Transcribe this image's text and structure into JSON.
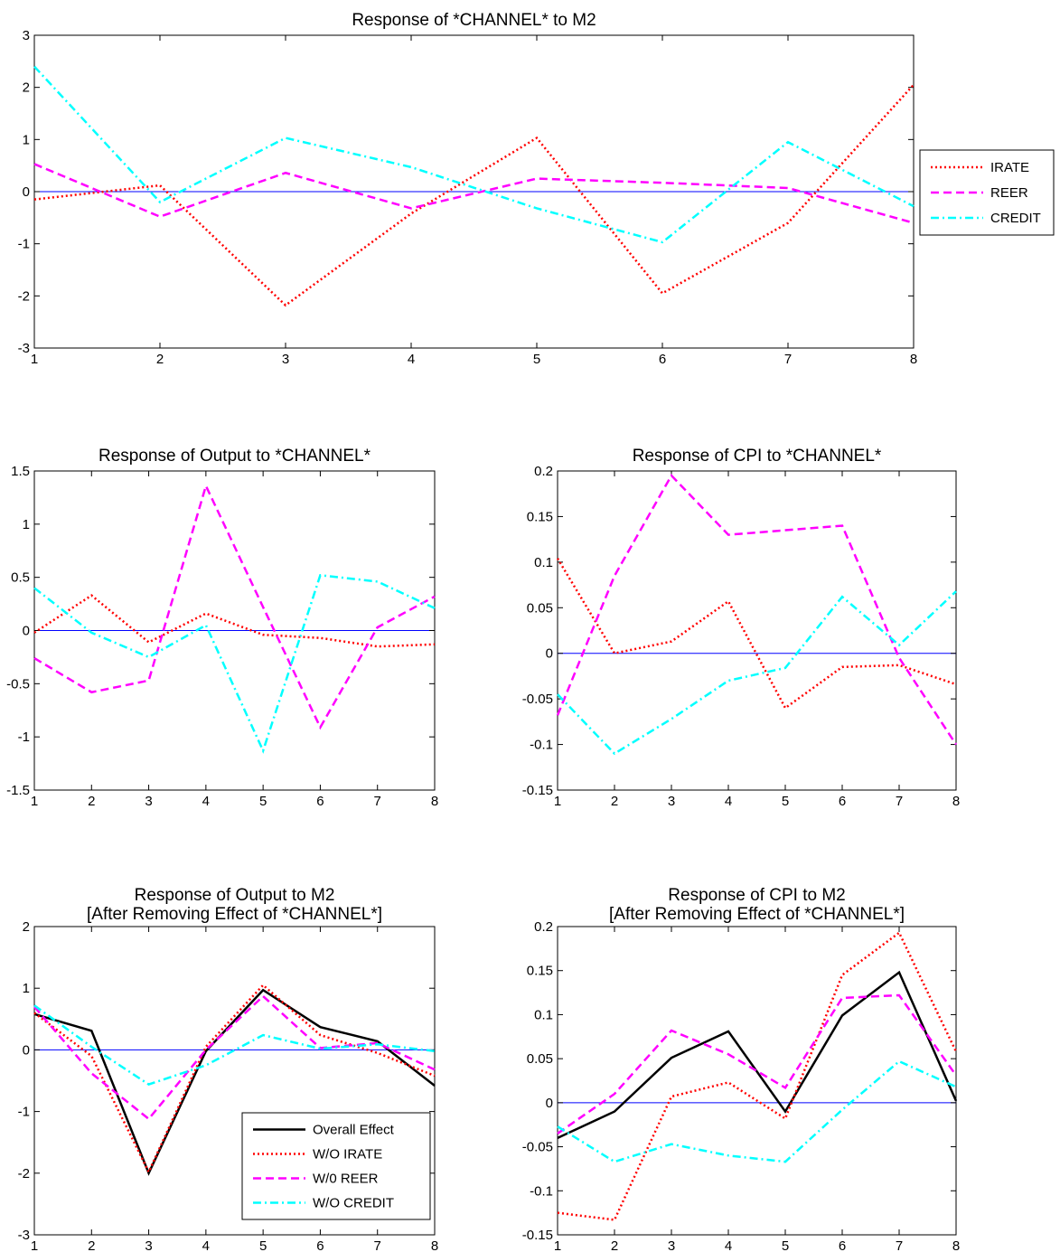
{
  "chart_data": [
    {
      "type": "line",
      "title": "Response of *CHANNEL* to M2",
      "x": [
        1,
        2,
        3,
        4,
        5,
        6,
        7,
        8
      ],
      "xlim": [
        1,
        8
      ],
      "ylim": [
        -3,
        3
      ],
      "xticks": [
        "1",
        "2",
        "3",
        "4",
        "5",
        "6",
        "7",
        "8"
      ],
      "yticks": [
        "-3",
        "-2",
        "-1",
        "0",
        "1",
        "2",
        "3"
      ],
      "legend_position": "outside-right",
      "series": [
        {
          "name": "IRATE",
          "color": "#ff0000",
          "dash": "dotted",
          "values": [
            -0.15,
            0.12,
            -2.18,
            -0.42,
            1.03,
            -1.95,
            -0.6,
            2.05
          ]
        },
        {
          "name": "REER",
          "color": "#ff00ff",
          "dash": "dashed",
          "values": [
            0.53,
            -0.48,
            0.36,
            -0.32,
            0.25,
            0.17,
            0.07,
            -0.6
          ]
        },
        {
          "name": "CREDIT",
          "color": "#00ffff",
          "dash": "dashdot",
          "values": [
            2.4,
            -0.2,
            1.03,
            0.47,
            -0.32,
            -0.97,
            0.95,
            -0.28
          ]
        }
      ]
    },
    {
      "type": "line",
      "title": "Response of Output to *CHANNEL*",
      "x": [
        1,
        2,
        3,
        4,
        5,
        6,
        7,
        8
      ],
      "xlim": [
        1,
        8
      ],
      "ylim": [
        -1.5,
        1.5
      ],
      "xticks": [
        "1",
        "2",
        "3",
        "4",
        "5",
        "6",
        "7",
        "8"
      ],
      "yticks": [
        "-1.5",
        "-1",
        "-0.5",
        "0",
        "0.5",
        "1",
        "1.5"
      ],
      "series": [
        {
          "color": "#ff0000",
          "dash": "dotted",
          "values": [
            -0.02,
            0.33,
            -0.11,
            0.16,
            -0.04,
            -0.07,
            -0.15,
            -0.13
          ]
        },
        {
          "color": "#ff00ff",
          "dash": "dashed",
          "values": [
            -0.26,
            -0.58,
            -0.47,
            1.36,
            0.22,
            -0.91,
            0.03,
            0.32
          ]
        },
        {
          "color": "#00ffff",
          "dash": "dashdot",
          "values": [
            0.4,
            -0.02,
            -0.25,
            0.05,
            -1.13,
            0.52,
            0.46,
            0.21
          ]
        }
      ]
    },
    {
      "type": "line",
      "title": "Response of CPI to *CHANNEL*",
      "x": [
        1,
        2,
        3,
        4,
        5,
        6,
        7,
        8
      ],
      "xlim": [
        1,
        8
      ],
      "ylim": [
        -0.15,
        0.2
      ],
      "xticks": [
        "1",
        "2",
        "3",
        "4",
        "5",
        "6",
        "7",
        "8"
      ],
      "yticks": [
        "-0.15",
        "-0.1",
        "-0.05",
        "0",
        "0.05",
        "0.1",
        "0.15",
        "0.2"
      ],
      "series": [
        {
          "color": "#ff0000",
          "dash": "dotted",
          "values": [
            0.104,
            0.0,
            0.013,
            0.057,
            -0.06,
            -0.015,
            -0.013,
            -0.034
          ]
        },
        {
          "color": "#ff00ff",
          "dash": "dashed",
          "values": [
            -0.068,
            0.085,
            0.195,
            0.13,
            0.135,
            0.14,
            -0.005,
            -0.1
          ]
        },
        {
          "color": "#00ffff",
          "dash": "dashdot",
          "values": [
            -0.045,
            -0.11,
            -0.072,
            -0.03,
            -0.016,
            0.062,
            0.009,
            0.068
          ]
        }
      ]
    },
    {
      "type": "line",
      "title": "Response of Output to M2",
      "subtitle": "[After Removing Effect of *CHANNEL*]",
      "x": [
        1,
        2,
        3,
        4,
        5,
        6,
        7,
        8
      ],
      "xlim": [
        1,
        8
      ],
      "ylim": [
        -3,
        2
      ],
      "xticks": [
        "1",
        "2",
        "3",
        "4",
        "5",
        "6",
        "7",
        "8"
      ],
      "yticks": [
        "-3",
        "-2",
        "-1",
        "0",
        "1",
        "2"
      ],
      "legend_position": "bottom-right",
      "series": [
        {
          "name": "Overall Effect",
          "color": "#000000",
          "dash": "solid",
          "values": [
            0.58,
            0.31,
            -2.0,
            -0.02,
            0.97,
            0.37,
            0.14,
            -0.58
          ]
        },
        {
          "name": "W/O IRATE",
          "color": "#ff0000",
          "dash": "dotted",
          "values": [
            0.6,
            -0.1,
            -1.98,
            0.05,
            1.05,
            0.24,
            -0.05,
            -0.42
          ]
        },
        {
          "name": "W/0 REER",
          "color": "#ff00ff",
          "dash": "dashed",
          "values": [
            0.7,
            -0.38,
            -1.12,
            0.0,
            0.87,
            0.03,
            0.11,
            -0.32
          ]
        },
        {
          "name": "W/O CREDIT",
          "color": "#00ffff",
          "dash": "dashdot",
          "values": [
            0.72,
            0.05,
            -0.56,
            -0.25,
            0.24,
            0.02,
            0.09,
            -0.02
          ]
        }
      ]
    },
    {
      "type": "line",
      "title": "Response of CPI to M2",
      "subtitle": "[After Removing Effect of *CHANNEL*]",
      "x": [
        1,
        2,
        3,
        4,
        5,
        6,
        7,
        8
      ],
      "xlim": [
        1,
        8
      ],
      "ylim": [
        -0.15,
        0.2
      ],
      "xticks": [
        "1",
        "2",
        "3",
        "4",
        "5",
        "6",
        "7",
        "8"
      ],
      "yticks": [
        "-0.15",
        "-0.1",
        "-0.05",
        "0",
        "0.05",
        "0.1",
        "0.15",
        "0.2"
      ],
      "series": [
        {
          "color": "#000000",
          "dash": "solid",
          "values": [
            -0.04,
            -0.01,
            0.051,
            0.081,
            -0.01,
            0.099,
            0.148,
            0.002
          ]
        },
        {
          "color": "#ff0000",
          "dash": "dotted",
          "values": [
            -0.125,
            -0.133,
            0.007,
            0.023,
            -0.018,
            0.145,
            0.193,
            0.058
          ]
        },
        {
          "color": "#ff00ff",
          "dash": "dashed",
          "values": [
            -0.035,
            0.01,
            0.082,
            0.055,
            0.017,
            0.119,
            0.122,
            0.031
          ]
        },
        {
          "color": "#00ffff",
          "dash": "dashdot",
          "values": [
            -0.027,
            -0.067,
            -0.047,
            -0.06,
            -0.067,
            -0.008,
            0.047,
            0.018
          ]
        }
      ]
    }
  ]
}
